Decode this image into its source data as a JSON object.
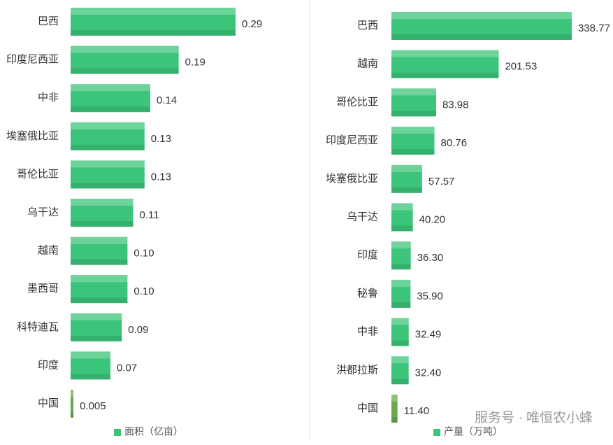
{
  "chart_data": [
    {
      "type": "bar",
      "orientation": "horizontal",
      "categories": [
        "巴西",
        "印度尼西亚",
        "中非",
        "埃塞俄比亚",
        "哥伦比亚",
        "乌干达",
        "越南",
        "墨西哥",
        "科特迪瓦",
        "印度",
        "中国"
      ],
      "series": [
        {
          "name": "面积（亿亩）",
          "color": "#3cc47a",
          "colors": [
            "#3cc47a",
            "#3cc47a",
            "#3cc47a",
            "#3cc47a",
            "#3cc47a",
            "#3cc47a",
            "#3cc47a",
            "#3cc47a",
            "#3cc47a",
            "#3cc47a",
            "#6aa84f"
          ],
          "values": [
            0.29,
            0.19,
            0.14,
            0.13,
            0.13,
            0.11,
            0.1,
            0.1,
            0.09,
            0.07,
            0.005
          ],
          "value_labels": [
            "0.29",
            "0.19",
            "0.14",
            "0.13",
            "0.13",
            "0.11",
            "0.10",
            "0.10",
            "0.09",
            "0.07",
            "0.005"
          ]
        }
      ]
    },
    {
      "type": "bar",
      "orientation": "horizontal",
      "categories": [
        "巴西",
        "越南",
        "哥伦比亚",
        "印度尼西亚",
        "埃塞俄比亚",
        "乌干达",
        "印度",
        "秘鲁",
        "中非",
        "洪都拉斯",
        "中国"
      ],
      "series": [
        {
          "name": "产量（万吨）",
          "color": "#3cc47a",
          "colors": [
            "#3cc47a",
            "#3cc47a",
            "#3cc47a",
            "#3cc47a",
            "#3cc47a",
            "#3cc47a",
            "#3cc47a",
            "#3cc47a",
            "#3cc47a",
            "#3cc47a",
            "#6aa84f"
          ],
          "values": [
            338.77,
            201.53,
            83.98,
            80.76,
            57.57,
            40.2,
            36.3,
            35.9,
            32.49,
            32.4,
            11.4
          ],
          "value_labels": [
            "338.77",
            "201.53",
            "83.98",
            "80.76",
            "57.57",
            "40.20",
            "36.30",
            "35.90",
            "32.49",
            "32.40",
            "11.40"
          ]
        }
      ]
    }
  ],
  "watermark": "服务号 · 唯恒农小蜂"
}
